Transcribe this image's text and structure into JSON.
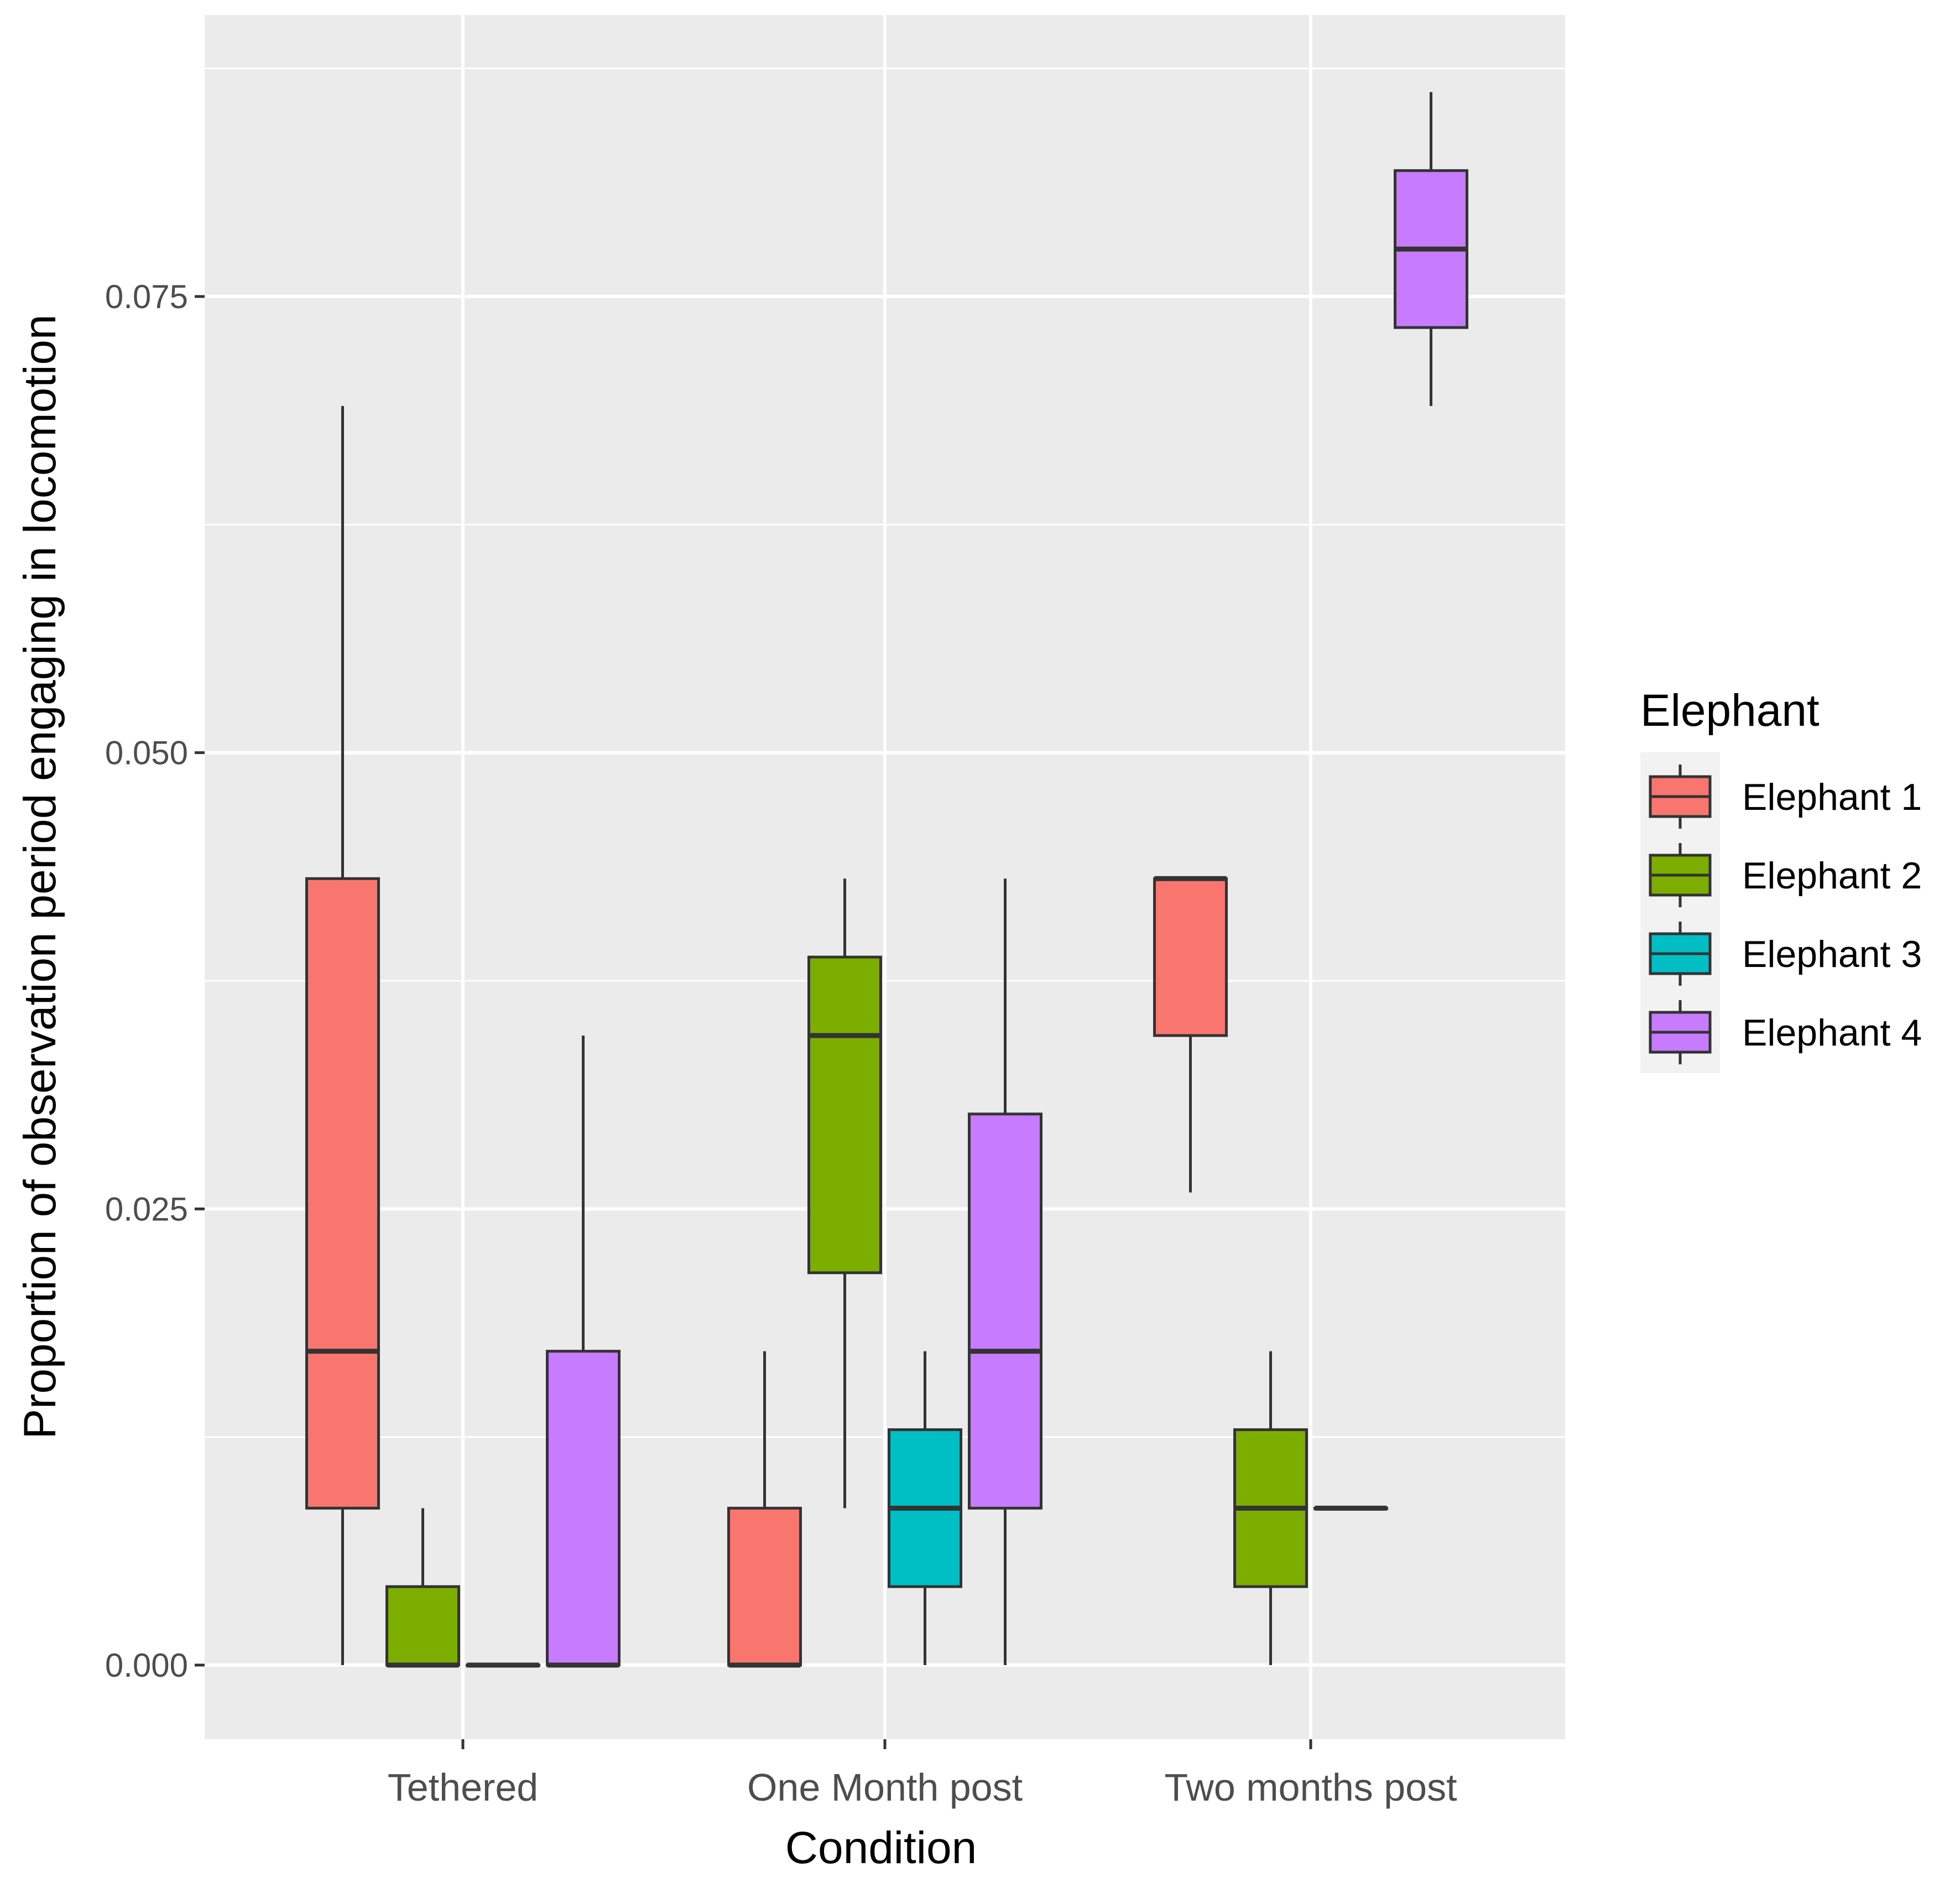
{
  "chart_data": {
    "type": "boxplot",
    "xlabel": "Condition",
    "ylabel": "Proportion of observation period engaging in locomotion",
    "categories": [
      "Tethered",
      "One Month post",
      "Two months post"
    ],
    "ylim": [
      -0.0042,
      0.0904
    ],
    "y_ticks": [
      {
        "value": 0.0,
        "label": "0.000"
      },
      {
        "value": 0.025,
        "label": "0.025"
      },
      {
        "value": 0.05,
        "label": "0.050"
      },
      {
        "value": 0.075,
        "label": "0.075"
      }
    ],
    "grid": true,
    "legend": {
      "title": "Elephant",
      "position": "right",
      "entries": [
        "Elephant 1",
        "Elephant 2",
        "Elephant 3",
        "Elephant 4"
      ]
    },
    "series": [
      {
        "name": "Elephant 1",
        "color": "#F8766D",
        "boxes": [
          {
            "category": "Tethered",
            "min": 0.0,
            "q1": 0.0086,
            "median": 0.0172,
            "q3": 0.0431,
            "max": 0.069
          },
          {
            "category": "One Month post",
            "min": 0.0,
            "q1": 0.0,
            "median": 0.0,
            "q3": 0.0086,
            "max": 0.0172
          },
          {
            "category": "Two months post",
            "min": 0.0259,
            "q1": 0.0345,
            "median": 0.0431,
            "q3": 0.0431,
            "max": 0.0431
          }
        ]
      },
      {
        "name": "Elephant 2",
        "color": "#7CAE00",
        "boxes": [
          {
            "category": "Tethered",
            "min": 0.0,
            "q1": 0.0,
            "median": 0.0,
            "q3": 0.0043,
            "max": 0.0086
          },
          {
            "category": "One Month post",
            "min": 0.0086,
            "q1": 0.0215,
            "median": 0.0345,
            "q3": 0.0388,
            "max": 0.0431
          },
          {
            "category": "Two months post",
            "min": 0.0,
            "q1": 0.0043,
            "median": 0.0086,
            "q3": 0.0129,
            "max": 0.0172
          }
        ]
      },
      {
        "name": "Elephant 3",
        "color": "#00BFC4",
        "boxes": [
          {
            "category": "Tethered",
            "min": 0.0,
            "q1": 0.0,
            "median": 0.0,
            "q3": 0.0,
            "max": 0.0
          },
          {
            "category": "One Month post",
            "min": 0.0,
            "q1": 0.0043,
            "median": 0.0086,
            "q3": 0.0129,
            "max": 0.0172
          },
          {
            "category": "Two months post",
            "min": 0.0086,
            "q1": 0.0086,
            "median": 0.0086,
            "q3": 0.0086,
            "max": 0.0086
          }
        ]
      },
      {
        "name": "Elephant 4",
        "color": "#C77CFF",
        "boxes": [
          {
            "category": "Tethered",
            "min": 0.0,
            "q1": 0.0,
            "median": 0.0,
            "q3": 0.0172,
            "max": 0.0345
          },
          {
            "category": "One Month post",
            "min": 0.0,
            "q1": 0.0086,
            "median": 0.0172,
            "q3": 0.0302,
            "max": 0.0431
          },
          {
            "category": "Two months post",
            "min": 0.069,
            "q1": 0.0733,
            "median": 0.0776,
            "q3": 0.0819,
            "max": 0.0862
          }
        ]
      }
    ]
  },
  "colors": {
    "panel_background": "#EBEBEB",
    "grid": "#FFFFFF",
    "box_outline": "#333333"
  }
}
